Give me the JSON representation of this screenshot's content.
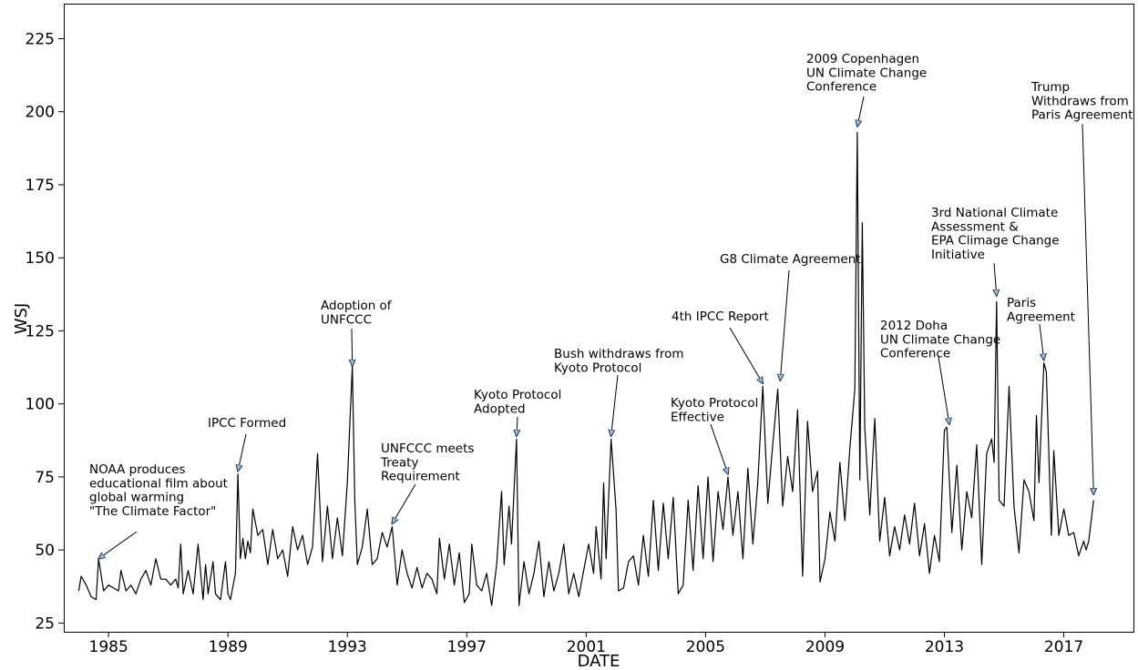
{
  "chart_data": {
    "type": "line",
    "title": "",
    "xlabel": "DATE",
    "ylabel": "WSJ",
    "xlim": [
      "1983-07-01",
      "2019-05-01"
    ],
    "ylim": [
      22,
      237
    ],
    "x_ticks": [
      "1985",
      "1989",
      "1993",
      "1997",
      "2001",
      "2005",
      "2009",
      "2013",
      "2017"
    ],
    "y_ticks": [
      25,
      50,
      75,
      100,
      125,
      150,
      175,
      200,
      225
    ],
    "grid": false,
    "legend": "none",
    "line_color": "#000000",
    "arrow_color": "#1f3a5a",
    "series": [
      {
        "points": [
          [
            "1984-01",
            36
          ],
          [
            "1984-02",
            41
          ],
          [
            "1984-04",
            38
          ],
          [
            "1984-06",
            34
          ],
          [
            "1984-08",
            33
          ],
          [
            "1984-09",
            47
          ],
          [
            "1984-11",
            36
          ],
          [
            "1985-01",
            38
          ],
          [
            "1985-03",
            37
          ],
          [
            "1985-05",
            36
          ],
          [
            "1985-06",
            43
          ],
          [
            "1985-08",
            36
          ],
          [
            "1985-10",
            38
          ],
          [
            "1985-12",
            35
          ],
          [
            "1986-02",
            40
          ],
          [
            "1986-04",
            43
          ],
          [
            "1986-06",
            38
          ],
          [
            "1986-08",
            47
          ],
          [
            "1986-10",
            40
          ],
          [
            "1986-12",
            40
          ],
          [
            "1987-02",
            38
          ],
          [
            "1987-04",
            40
          ],
          [
            "1987-05",
            37
          ],
          [
            "1987-06",
            52
          ],
          [
            "1987-07",
            35
          ],
          [
            "1987-09",
            43
          ],
          [
            "1987-11",
            35
          ],
          [
            "1988-01",
            52
          ],
          [
            "1988-03",
            33
          ],
          [
            "1988-04",
            45
          ],
          [
            "1988-05",
            35
          ],
          [
            "1988-07",
            46
          ],
          [
            "1988-08",
            35
          ],
          [
            "1988-10",
            33
          ],
          [
            "1988-12",
            46
          ],
          [
            "1989-01",
            35
          ],
          [
            "1989-02",
            33
          ],
          [
            "1989-04",
            42
          ],
          [
            "1989-05",
            76
          ],
          [
            "1989-06",
            47
          ],
          [
            "1989-07",
            54
          ],
          [
            "1989-08",
            47
          ],
          [
            "1989-09",
            53
          ],
          [
            "1989-10",
            49
          ],
          [
            "1989-11",
            64
          ],
          [
            "1990-01",
            55
          ],
          [
            "1990-03",
            57
          ],
          [
            "1990-05",
            45
          ],
          [
            "1990-07",
            57
          ],
          [
            "1990-09",
            47
          ],
          [
            "1990-11",
            50
          ],
          [
            "1991-01",
            41
          ],
          [
            "1991-03",
            58
          ],
          [
            "1991-05",
            50
          ],
          [
            "1991-07",
            55
          ],
          [
            "1991-09",
            45
          ],
          [
            "1991-11",
            51
          ],
          [
            "1992-01",
            83
          ],
          [
            "1992-03",
            46
          ],
          [
            "1992-05",
            65
          ],
          [
            "1992-07",
            47
          ],
          [
            "1992-09",
            61
          ],
          [
            "1992-11",
            48
          ],
          [
            "1993-01",
            73
          ],
          [
            "1993-03",
            113
          ],
          [
            "1993-04",
            67
          ],
          [
            "1993-05",
            45
          ],
          [
            "1993-07",
            51
          ],
          [
            "1993-09",
            64
          ],
          [
            "1993-11",
            45
          ],
          [
            "1994-01",
            47
          ],
          [
            "1994-03",
            56
          ],
          [
            "1994-05",
            51
          ],
          [
            "1994-07",
            58
          ],
          [
            "1994-09",
            38
          ],
          [
            "1994-11",
            50
          ],
          [
            "1995-01",
            42
          ],
          [
            "1995-03",
            37
          ],
          [
            "1995-05",
            44
          ],
          [
            "1995-07",
            37
          ],
          [
            "1995-09",
            42
          ],
          [
            "1995-11",
            40
          ],
          [
            "1996-01",
            35
          ],
          [
            "1996-02",
            54
          ],
          [
            "1996-04",
            40
          ],
          [
            "1996-06",
            52
          ],
          [
            "1996-08",
            38
          ],
          [
            "1996-10",
            49
          ],
          [
            "1996-12",
            32
          ],
          [
            "1997-02",
            35
          ],
          [
            "1997-03",
            52
          ],
          [
            "1997-05",
            38
          ],
          [
            "1997-07",
            36
          ],
          [
            "1997-09",
            42
          ],
          [
            "1997-11",
            31
          ],
          [
            "1998-01",
            45
          ],
          [
            "1998-03",
            70
          ],
          [
            "1998-04",
            45
          ],
          [
            "1998-06",
            65
          ],
          [
            "1998-07",
            52
          ],
          [
            "1998-09",
            88
          ],
          [
            "1998-10",
            31
          ],
          [
            "1998-12",
            46
          ],
          [
            "1999-02",
            35
          ],
          [
            "1999-04",
            42
          ],
          [
            "1999-06",
            53
          ],
          [
            "1999-08",
            34
          ],
          [
            "1999-10",
            46
          ],
          [
            "1999-12",
            36
          ],
          [
            "2000-02",
            42
          ],
          [
            "2000-04",
            52
          ],
          [
            "2000-06",
            35
          ],
          [
            "2000-08",
            42
          ],
          [
            "2000-10",
            34
          ],
          [
            "2000-12",
            43
          ],
          [
            "2001-02",
            52
          ],
          [
            "2001-04",
            42
          ],
          [
            "2001-05",
            58
          ],
          [
            "2001-07",
            40
          ],
          [
            "2001-08",
            73
          ],
          [
            "2001-09",
            47
          ],
          [
            "2001-11",
            88
          ],
          [
            "2002-01",
            64
          ],
          [
            "2002-02",
            36
          ],
          [
            "2002-04",
            37
          ],
          [
            "2002-06",
            46
          ],
          [
            "2002-08",
            48
          ],
          [
            "2002-10",
            38
          ],
          [
            "2002-12",
            55
          ],
          [
            "2003-02",
            41
          ],
          [
            "2003-04",
            67
          ],
          [
            "2003-06",
            43
          ],
          [
            "2003-08",
            66
          ],
          [
            "2003-10",
            47
          ],
          [
            "2003-12",
            68
          ],
          [
            "2004-02",
            35
          ],
          [
            "2004-04",
            38
          ],
          [
            "2004-06",
            67
          ],
          [
            "2004-08",
            43
          ],
          [
            "2004-10",
            72
          ],
          [
            "2004-12",
            47
          ],
          [
            "2005-02",
            75
          ],
          [
            "2005-04",
            46
          ],
          [
            "2005-06",
            70
          ],
          [
            "2005-08",
            57
          ],
          [
            "2005-10",
            75
          ],
          [
            "2005-12",
            55
          ],
          [
            "2006-02",
            70
          ],
          [
            "2006-04",
            47
          ],
          [
            "2006-06",
            78
          ],
          [
            "2006-08",
            52
          ],
          [
            "2006-10",
            73
          ],
          [
            "2006-12",
            106
          ],
          [
            "2007-02",
            66
          ],
          [
            "2007-04",
            86
          ],
          [
            "2007-06",
            105
          ],
          [
            "2007-08",
            65
          ],
          [
            "2007-10",
            82
          ],
          [
            "2007-12",
            70
          ],
          [
            "2008-02",
            98
          ],
          [
            "2008-04",
            41
          ],
          [
            "2008-06",
            94
          ],
          [
            "2008-08",
            70
          ],
          [
            "2008-10",
            77
          ],
          [
            "2008-11",
            39
          ],
          [
            "2009-01",
            47
          ],
          [
            "2009-03",
            63
          ],
          [
            "2009-05",
            53
          ],
          [
            "2009-07",
            80
          ],
          [
            "2009-09",
            60
          ],
          [
            "2009-11",
            85
          ],
          [
            "2010-01",
            105
          ],
          [
            "2010-02",
            193
          ],
          [
            "2010-03",
            74
          ],
          [
            "2010-04",
            162
          ],
          [
            "2010-05",
            92
          ],
          [
            "2010-07",
            62
          ],
          [
            "2010-09",
            95
          ],
          [
            "2010-11",
            53
          ],
          [
            "2011-01",
            68
          ],
          [
            "2011-03",
            48
          ],
          [
            "2011-05",
            58
          ],
          [
            "2011-07",
            50
          ],
          [
            "2011-09",
            62
          ],
          [
            "2011-11",
            52
          ],
          [
            "2012-01",
            66
          ],
          [
            "2012-03",
            48
          ],
          [
            "2012-05",
            59
          ],
          [
            "2012-07",
            42
          ],
          [
            "2012-09",
            55
          ],
          [
            "2012-11",
            46
          ],
          [
            "2013-01",
            91
          ],
          [
            "2013-02",
            92
          ],
          [
            "2013-04",
            56
          ],
          [
            "2013-06",
            79
          ],
          [
            "2013-08",
            50
          ],
          [
            "2013-10",
            70
          ],
          [
            "2013-12",
            61
          ],
          [
            "2014-02",
            86
          ],
          [
            "2014-04",
            45
          ],
          [
            "2014-06",
            83
          ],
          [
            "2014-08",
            88
          ],
          [
            "2014-09",
            80
          ],
          [
            "2014-10",
            135
          ],
          [
            "2014-11",
            67
          ],
          [
            "2015-01",
            65
          ],
          [
            "2015-03",
            106
          ],
          [
            "2015-05",
            65
          ],
          [
            "2015-07",
            49
          ],
          [
            "2015-09",
            74
          ],
          [
            "2015-11",
            70
          ],
          [
            "2016-01",
            60
          ],
          [
            "2016-02",
            96
          ],
          [
            "2016-03",
            73
          ],
          [
            "2016-05",
            114
          ],
          [
            "2016-06",
            111
          ],
          [
            "2016-08",
            55
          ],
          [
            "2016-09",
            84
          ],
          [
            "2016-11",
            55
          ],
          [
            "2017-01",
            64
          ],
          [
            "2017-03",
            55
          ],
          [
            "2017-05",
            56
          ],
          [
            "2017-07",
            48
          ],
          [
            "2017-09",
            53
          ],
          [
            "2017-10",
            50
          ],
          [
            "2017-11",
            53
          ],
          [
            "2018-01",
            67
          ]
        ]
      }
    ],
    "annotations": [
      {
        "lines": [
          "NOAA produces",
          "educational film about",
          "global warming",
          "\"The Climate Factor\""
        ],
        "date": "1984-09",
        "value": 47
      },
      {
        "lines": [
          "IPCC Formed"
        ],
        "date": "1989-05",
        "value": 77
      },
      {
        "lines": [
          "Adoption of",
          "UNFCCC"
        ],
        "date": "1993-03",
        "value": 113
      },
      {
        "lines": [
          "UNFCCC meets",
          "Treaty",
          "Requirement"
        ],
        "date": "1994-07",
        "value": 59
      },
      {
        "lines": [
          "Kyoto Protocol",
          "Adopted"
        ],
        "date": "1998-09",
        "value": 89
      },
      {
        "lines": [
          "Bush withdraws from",
          "Kyoto Protocol"
        ],
        "date": "2001-11",
        "value": 89
      },
      {
        "lines": [
          "Kyoto Protocol",
          "Effective"
        ],
        "date": "2005-10",
        "value": 76
      },
      {
        "lines": [
          "4th IPCC Report"
        ],
        "date": "2006-12",
        "value": 107
      },
      {
        "lines": [
          "G8 Climate Agreement"
        ],
        "date": "2007-07",
        "value": 108
      },
      {
        "lines": [
          "2009 Copenhagen",
          "UN Climate Change",
          "Conference"
        ],
        "date": "2010-02",
        "value": 195
      },
      {
        "lines": [
          "2012 Doha",
          "UN Climate Change",
          "Conference"
        ],
        "date": "2013-03",
        "value": 93
      },
      {
        "lines": [
          "3rd National Climate",
          "Assessment &",
          "EPA Climage Change",
          "Initiative"
        ],
        "date": "2014-10",
        "value": 137
      },
      {
        "lines": [
          "Paris",
          "Agreement"
        ],
        "date": "2016-05",
        "value": 115
      },
      {
        "lines": [
          "Trump",
          "Withdraws from",
          "Paris Agreement"
        ],
        "date": "2018-01",
        "value": 69
      }
    ]
  }
}
